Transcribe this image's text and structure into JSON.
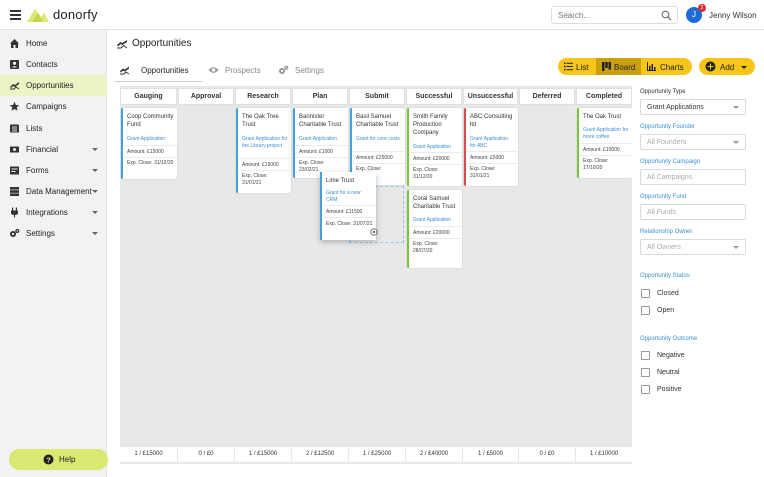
{
  "header": {
    "brand": "donorfy",
    "search_placeholder": "Search...",
    "user_initial": "J",
    "notification_count": "2",
    "user_name": "Jenny Wilson"
  },
  "sidebar": {
    "items": [
      {
        "label": "Home",
        "icon": "home-icon"
      },
      {
        "label": "Contacts",
        "icon": "contacts-icon"
      },
      {
        "label": "Opportunities",
        "icon": "opportunities-icon",
        "active": true
      },
      {
        "label": "Campaigns",
        "icon": "star-icon"
      },
      {
        "label": "Lists",
        "icon": "list-icon"
      },
      {
        "label": "Financial",
        "icon": "financial-icon",
        "has_submenu": true
      },
      {
        "label": "Forms",
        "icon": "forms-icon",
        "has_submenu": true
      },
      {
        "label": "Data Management",
        "icon": "data-icon",
        "has_submenu": true
      },
      {
        "label": "Integrations",
        "icon": "plug-icon",
        "has_submenu": true
      },
      {
        "label": "Settings",
        "icon": "gear-icon",
        "has_submenu": true
      }
    ],
    "help_label": "Help"
  },
  "page": {
    "title": "Opportunities",
    "tabs": [
      {
        "label": "Opportunities",
        "active": true
      },
      {
        "label": "Prospects",
        "active": false
      },
      {
        "label": "Settings",
        "active": false
      }
    ],
    "views": [
      {
        "label": "List",
        "active": false
      },
      {
        "label": "Board",
        "active": true
      },
      {
        "label": "Charts",
        "active": false
      }
    ],
    "add_label": "Add"
  },
  "board": {
    "columns": [
      {
        "name": "Gauging Interest",
        "footer": "1 / £15000"
      },
      {
        "name": "Approval",
        "footer": "0 / £0"
      },
      {
        "name": "Research",
        "footer": "1 / £15000"
      },
      {
        "name": "Plan",
        "footer": "2 / £12500"
      },
      {
        "name": "Submit",
        "footer": "1 / £25000"
      },
      {
        "name": "Successful",
        "footer": "2 / £40000"
      },
      {
        "name": "Unsuccessful",
        "footer": "1 / £5000"
      },
      {
        "name": "Deferred",
        "footer": "0 / £0"
      },
      {
        "name": "Completed",
        "footer": "1 / £10000"
      }
    ],
    "cards": [
      {
        "title": "Coop Community Fund",
        "type": "Grant Application",
        "amount": "Amount: £15000",
        "close": "Exp. Close: 31/12/20"
      },
      {
        "title": "The Oak Tree Trust",
        "type": "Grant Application for the Library project",
        "amount": "Amount: £15000",
        "close": "Exp. Close: 31/01/21"
      },
      {
        "title": "Bannister Charitable Trust",
        "type": "Grant Application",
        "amount": "Amount: £1000",
        "close": "Exp. Close: 23/02/21"
      },
      {
        "title": "Basil Samuel Charitable Trust",
        "type": "Grant for core costs",
        "amount": "Amount: £25000",
        "close": "Exp. Close: 31/12/20"
      },
      {
        "title": "Smith Family Production Company",
        "type": "Grant Application",
        "amount": "Amount: £20000",
        "close": "Exp. Close: 31/12/20"
      },
      {
        "title": "Coral Samuel Charitable Trust",
        "type": "Grant Application",
        "amount": "Amount: £20000",
        "close": "Exp. Close: 28/07/20"
      },
      {
        "title": "ABC Consulting ltd",
        "type": "Grant Application for ABC",
        "amount": "Amount: £5000",
        "close": "Exp. Close: 31/01/21"
      },
      {
        "title": "The Oak Trust",
        "type": "Grant Application for more coffee",
        "amount": "Amount: £10000",
        "close": "Exp. Close: 17/10/20"
      }
    ],
    "drag_card": {
      "title": "Lime Trust",
      "type": "Grant for a new CRM",
      "amount": "Amount: £11500",
      "close": "Exp. Close: 31/07/21"
    }
  },
  "filters": {
    "opportunity_type_label": "Opportunity Type",
    "opportunity_type_value": "Grant Applications",
    "founder_label": "Opportunity Founder",
    "founder_placeholder": "All Founders",
    "campaign_label": "Opportunity Campaign",
    "campaign_placeholder": "All Campaigns",
    "fund_label": "Opportunity Fund",
    "fund_placeholder": "All Funds",
    "owner_label": "Relationship Owner",
    "owner_placeholder": "All Owners",
    "status_label": "Opportunity Status",
    "status_options": [
      "Closed",
      "Open"
    ],
    "outcome_label": "Opportunity Outcome",
    "outcome_options": [
      "Negative",
      "Neutral",
      "Positive"
    ]
  },
  "colors": {
    "accent_yellow": "#f5c51a",
    "sidebar_active": "#ecf3c4",
    "help_button": "#dbe872",
    "link_blue": "#3b8fd6",
    "card_blue": "#45a0dc",
    "card_green": "#7ec33d",
    "card_red": "#e04a4a"
  }
}
